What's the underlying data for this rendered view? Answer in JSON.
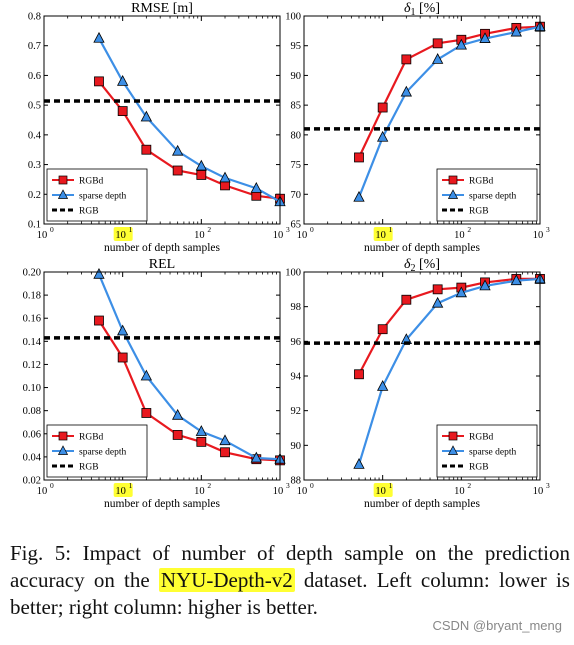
{
  "chart_data": [
    {
      "type": "line",
      "title": "RMSE [m]",
      "xlabel": "number of depth samples",
      "xscale": "log",
      "xlim": [
        1,
        1000
      ],
      "xticks": [
        {
          "v": 1,
          "label": "10",
          "exp": "0"
        },
        {
          "v": 10,
          "label": "10",
          "exp": "1",
          "highlight": true
        },
        {
          "v": 100,
          "label": "10",
          "exp": "2"
        },
        {
          "v": 1000,
          "label": "10",
          "exp": "3"
        }
      ],
      "ylim": [
        0.1,
        0.8
      ],
      "yticks": [
        "0.1",
        "0.2",
        "0.3",
        "0.4",
        "0.5",
        "0.6",
        "0.7",
        "0.8"
      ],
      "legend_position": "bottom-left",
      "series": [
        {
          "name": "RGBd",
          "marker": "square",
          "color": "#e8191f",
          "x": [
            5,
            10,
            20,
            50,
            100,
            200,
            500,
            1000
          ],
          "y": [
            0.58,
            0.48,
            0.35,
            0.28,
            0.265,
            0.23,
            0.195,
            0.185
          ]
        },
        {
          "name": "sparse depth",
          "marker": "triangle",
          "color": "#3d8fe6",
          "x": [
            5,
            10,
            20,
            50,
            100,
            200,
            500,
            1000
          ],
          "y": [
            0.725,
            0.58,
            0.46,
            0.345,
            0.295,
            0.255,
            0.22,
            0.175
          ]
        },
        {
          "name": "RGB",
          "dashed": true,
          "color": "#000000",
          "y": 0.514
        }
      ]
    },
    {
      "type": "line",
      "title_symbol": "δ",
      "title_sub": "1",
      "title_suffix": " [%]",
      "xlabel": "number of depth samples",
      "xscale": "log",
      "xlim": [
        1,
        1000
      ],
      "xticks": [
        {
          "v": 1,
          "label": "10",
          "exp": "0"
        },
        {
          "v": 10,
          "label": "10",
          "exp": "1",
          "highlight": true
        },
        {
          "v": 100,
          "label": "10",
          "exp": "2"
        },
        {
          "v": 1000,
          "label": "10",
          "exp": "3"
        }
      ],
      "ylim": [
        65,
        100
      ],
      "yticks": [
        "65",
        "70",
        "75",
        "80",
        "85",
        "90",
        "95",
        "100"
      ],
      "legend_position": "bottom-right",
      "series": [
        {
          "name": "RGBd",
          "marker": "square",
          "color": "#e8191f",
          "x": [
            5,
            10,
            20,
            50,
            100,
            200,
            500,
            1000
          ],
          "y": [
            76.2,
            84.6,
            92.7,
            95.4,
            96.0,
            97.0,
            98.0,
            98.2
          ]
        },
        {
          "name": "sparse depth",
          "marker": "triangle",
          "color": "#3d8fe6",
          "x": [
            5,
            10,
            20,
            50,
            100,
            200,
            500,
            1000
          ],
          "y": [
            69.5,
            79.6,
            87.2,
            92.7,
            95.1,
            96.2,
            97.3,
            98.2
          ]
        },
        {
          "name": "RGB",
          "dashed": true,
          "color": "#000000",
          "y": 81.0
        }
      ]
    },
    {
      "type": "line",
      "title": "REL",
      "xlabel": "number of depth samples",
      "xscale": "log",
      "xlim": [
        1,
        1000
      ],
      "xticks": [
        {
          "v": 1,
          "label": "10",
          "exp": "0"
        },
        {
          "v": 10,
          "label": "10",
          "exp": "1",
          "highlight": true
        },
        {
          "v": 100,
          "label": "10",
          "exp": "2"
        },
        {
          "v": 1000,
          "label": "10",
          "exp": "3"
        }
      ],
      "ylim": [
        0.02,
        0.2
      ],
      "yticks": [
        "0.02",
        "0.04",
        "0.06",
        "0.08",
        "0.10",
        "0.12",
        "0.14",
        "0.16",
        "0.18",
        "0.20"
      ],
      "legend_position": "bottom-left",
      "series": [
        {
          "name": "RGBd",
          "marker": "square",
          "color": "#e8191f",
          "x": [
            5,
            10,
            20,
            50,
            100,
            200,
            500,
            1000
          ],
          "y": [
            0.158,
            0.126,
            0.078,
            0.059,
            0.053,
            0.044,
            0.038,
            0.037
          ]
        },
        {
          "name": "sparse depth",
          "marker": "triangle",
          "color": "#3d8fe6",
          "x": [
            5,
            10,
            20,
            50,
            100,
            200,
            500,
            1000
          ],
          "y": [
            0.198,
            0.149,
            0.11,
            0.076,
            0.062,
            0.054,
            0.039,
            0.038
          ]
        },
        {
          "name": "RGB",
          "dashed": true,
          "color": "#000000",
          "y": 0.143
        }
      ]
    },
    {
      "type": "line",
      "title_symbol": "δ",
      "title_sub": "2",
      "title_suffix": " [%]",
      "xlabel": "number of depth samples",
      "xscale": "log",
      "xlim": [
        1,
        1000
      ],
      "xticks": [
        {
          "v": 1,
          "label": "10",
          "exp": "0"
        },
        {
          "v": 10,
          "label": "10",
          "exp": "1",
          "highlight": true
        },
        {
          "v": 100,
          "label": "10",
          "exp": "2"
        },
        {
          "v": 1000,
          "label": "10",
          "exp": "3"
        }
      ],
      "ylim": [
        88,
        100
      ],
      "yticks": [
        "88",
        "90",
        "92",
        "94",
        "96",
        "98",
        "100"
      ],
      "legend_position": "bottom-right",
      "series": [
        {
          "name": "RGBd",
          "marker": "square",
          "color": "#e8191f",
          "x": [
            5,
            10,
            20,
            50,
            100,
            200,
            500,
            1000
          ],
          "y": [
            94.1,
            96.7,
            98.4,
            99.0,
            99.1,
            99.4,
            99.6,
            99.6
          ]
        },
        {
          "name": "sparse depth",
          "marker": "triangle",
          "color": "#3d8fe6",
          "x": [
            5,
            10,
            20,
            50,
            100,
            200,
            500,
            1000
          ],
          "y": [
            88.9,
            93.4,
            96.1,
            98.2,
            98.8,
            99.2,
            99.5,
            99.6
          ]
        },
        {
          "name": "RGB",
          "dashed": true,
          "color": "#000000",
          "y": 95.9
        }
      ]
    }
  ],
  "caption": {
    "before": "Fig. 5: Impact of number of depth sample on the prediction accuracy on the ",
    "highlight": "NYU-Depth-v2",
    "after": " dataset. Left column: lower is better; right column: higher is better."
  },
  "watermark": "CSDN @bryant_meng",
  "colors": {
    "highlight": "#ffff33"
  }
}
